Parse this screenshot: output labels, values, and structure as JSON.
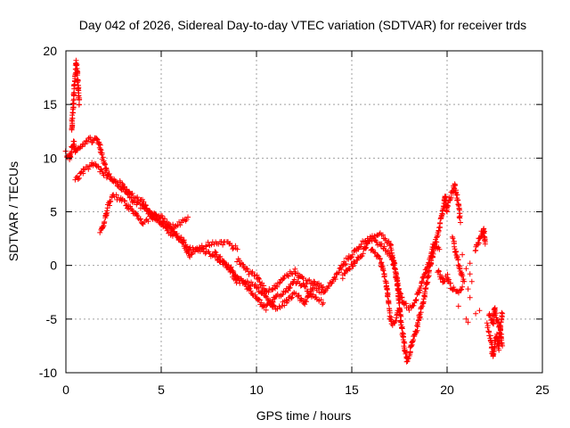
{
  "chart_data": {
    "type": "scatter",
    "title": "Day 042 of 2026, Sidereal Day-to-day VTEC variation (SDTVAR) for receiver trds",
    "xlabel": "GPS time / hours",
    "ylabel": "SDTVAR / TECUs",
    "xlim": [
      0,
      25
    ],
    "ylim": [
      -10,
      20
    ],
    "xticks": [
      0,
      5,
      10,
      15,
      20,
      25
    ],
    "yticks": [
      -10,
      -5,
      0,
      5,
      10,
      15,
      20
    ],
    "grid": true,
    "marker": "+",
    "series": [
      {
        "name": "SDTVAR",
        "color": "#ff0000",
        "tracks": [
          [
            [
              0.0,
              10.5
            ],
            [
              0.2,
              10.0
            ],
            [
              0.3,
              11.0
            ],
            [
              0.4,
              11.5
            ],
            [
              0.5,
              10.5
            ],
            [
              0.8,
              11.2
            ],
            [
              1.0,
              11.5
            ],
            [
              1.2,
              11.8
            ],
            [
              1.4,
              11.5
            ],
            [
              1.6,
              12.0
            ],
            [
              1.8,
              11.0
            ],
            [
              2.0,
              9.5
            ],
            [
              2.2,
              8.5
            ],
            [
              2.5,
              8.0
            ],
            [
              3.0,
              7.5
            ],
            [
              3.5,
              6.0
            ],
            [
              4.0,
              5.5
            ],
            [
              4.5,
              5.0
            ],
            [
              5.0,
              4.0
            ],
            [
              5.5,
              3.0
            ],
            [
              6.0,
              2.5
            ],
            [
              6.5,
              1.5
            ],
            [
              7.0,
              1.5
            ],
            [
              7.5,
              1.2
            ],
            [
              8.0,
              0.5
            ],
            [
              8.5,
              0.0
            ],
            [
              9.0,
              -1.0
            ],
            [
              9.5,
              -2.0
            ],
            [
              10.0,
              -3.0
            ],
            [
              10.5,
              -4.0
            ],
            [
              11.0,
              -3.0
            ],
            [
              11.5,
              -2.5
            ],
            [
              12.0,
              -1.5
            ],
            [
              12.5,
              -2.0
            ],
            [
              13.0,
              -3.0
            ],
            [
              13.5,
              -3.5
            ]
          ],
          [
            [
              0.3,
              12.5
            ],
            [
              0.4,
              15.5
            ],
            [
              0.5,
              18.0
            ],
            [
              0.55,
              19.0
            ],
            [
              0.6,
              18.0
            ],
            [
              0.7,
              15.0
            ]
          ],
          [
            [
              0.5,
              8.0
            ],
            [
              0.8,
              8.5
            ],
            [
              1.0,
              9.0
            ],
            [
              1.5,
              9.5
            ],
            [
              2.0,
              8.5
            ],
            [
              2.5,
              8.0
            ],
            [
              3.0,
              7.0
            ],
            [
              3.5,
              6.5
            ],
            [
              4.0,
              6.0
            ],
            [
              4.5,
              4.5
            ],
            [
              5.0,
              4.0
            ],
            [
              5.5,
              3.5
            ],
            [
              6.0,
              2.5
            ],
            [
              6.5,
              1.0
            ],
            [
              7.0,
              1.5
            ],
            [
              7.5,
              2.0
            ],
            [
              8.0,
              2.0
            ],
            [
              8.5,
              2.0
            ],
            [
              9.0,
              1.5
            ]
          ],
          [
            [
              1.8,
              3.0
            ],
            [
              2.0,
              4.0
            ],
            [
              2.2,
              5.5
            ],
            [
              2.5,
              6.5
            ],
            [
              3.0,
              6.0
            ],
            [
              3.5,
              5.0
            ],
            [
              4.0,
              4.0
            ],
            [
              4.5,
              4.5
            ],
            [
              5.0,
              4.5
            ],
            [
              5.5,
              3.5
            ],
            [
              6.0,
              4.0
            ],
            [
              6.4,
              4.5
            ]
          ],
          [
            [
              7.8,
              1.2
            ],
            [
              8.2,
              0.5
            ],
            [
              8.6,
              -0.5
            ],
            [
              9.0,
              -1.5
            ],
            [
              9.5,
              -1.5
            ],
            [
              10.0,
              -2.0
            ],
            [
              10.5,
              -3.0
            ],
            [
              11.0,
              -4.0
            ],
            [
              11.5,
              -3.5
            ],
            [
              12.0,
              -2.5
            ],
            [
              12.5,
              -3.5
            ],
            [
              13.0,
              -2.0
            ],
            [
              13.5,
              -2.5
            ]
          ],
          [
            [
              9.0,
              0.5
            ],
            [
              9.5,
              -0.5
            ],
            [
              10.0,
              -1.0
            ],
            [
              10.5,
              -2.5
            ],
            [
              11.0,
              -2.0
            ],
            [
              11.5,
              -1.0
            ],
            [
              12.0,
              -0.5
            ],
            [
              12.5,
              -1.5
            ],
            [
              13.0,
              -1.5
            ],
            [
              13.5,
              -2.0
            ]
          ],
          [
            [
              13.5,
              -2.5
            ],
            [
              14.0,
              -1.5
            ],
            [
              14.5,
              0.0
            ],
            [
              15.0,
              1.0
            ],
            [
              15.5,
              2.0
            ],
            [
              16.0,
              2.5
            ],
            [
              16.5,
              2.8
            ],
            [
              17.0,
              2.0
            ],
            [
              17.2,
              0.5
            ],
            [
              17.4,
              -2.0
            ],
            [
              17.6,
              -5.5
            ],
            [
              17.8,
              -8.0
            ],
            [
              17.9,
              -8.8
            ],
            [
              18.0,
              -8.5
            ],
            [
              18.2,
              -7.0
            ],
            [
              18.4,
              -6.0
            ],
            [
              18.6,
              -4.5
            ],
            [
              18.8,
              -3.0
            ],
            [
              19.0,
              -1.0
            ],
            [
              19.3,
              1.5
            ],
            [
              19.6,
              3.5
            ],
            [
              19.8,
              5.5
            ],
            [
              19.9,
              6.5
            ],
            [
              20.0,
              5.0
            ]
          ],
          [
            [
              14.5,
              -1.0
            ],
            [
              15.0,
              0.0
            ],
            [
              15.5,
              1.0
            ],
            [
              16.0,
              2.5
            ],
            [
              16.5,
              2.0
            ],
            [
              17.0,
              1.0
            ],
            [
              17.3,
              -0.5
            ],
            [
              17.5,
              -2.5
            ],
            [
              17.7,
              -3.5
            ],
            [
              18.0,
              -4.0
            ],
            [
              18.3,
              -3.5
            ],
            [
              18.6,
              -2.0
            ],
            [
              19.0,
              0.0
            ],
            [
              19.3,
              2.0
            ],
            [
              19.6,
              1.5
            ]
          ],
          [
            [
              16.0,
              1.5
            ],
            [
              16.5,
              0.5
            ],
            [
              16.8,
              -1.5
            ],
            [
              17.0,
              -4.5
            ],
            [
              17.1,
              -5.5
            ],
            [
              17.3,
              -5.0
            ],
            [
              17.5,
              -4.0
            ]
          ],
          [
            [
              19.5,
              -0.5
            ],
            [
              19.8,
              -1.5
            ],
            [
              20.0,
              -1.0
            ],
            [
              20.2,
              -2.0
            ],
            [
              20.5,
              -2.5
            ],
            [
              20.8,
              -2.0
            ]
          ],
          [
            [
              20.0,
              5.5
            ],
            [
              20.2,
              6.5
            ],
            [
              20.4,
              7.5
            ],
            [
              20.5,
              6.5
            ],
            [
              20.6,
              5.5
            ],
            [
              20.7,
              4.0
            ]
          ],
          [
            [
              20.3,
              2.5
            ],
            [
              20.5,
              1.0
            ],
            [
              20.7,
              -0.5
            ],
            [
              20.9,
              -1.5
            ]
          ],
          [
            [
              21.5,
              1.5
            ],
            [
              21.7,
              2.5
            ],
            [
              21.9,
              3.5
            ],
            [
              22.0,
              2.0
            ]
          ],
          [
            [
              22.1,
              -5.5
            ],
            [
              22.3,
              -7.0
            ],
            [
              22.4,
              -8.5
            ],
            [
              22.5,
              -7.5
            ],
            [
              22.6,
              -6.5
            ],
            [
              22.7,
              -7.8
            ],
            [
              22.8,
              -5.5
            ],
            [
              22.9,
              -4.5
            ]
          ],
          [
            [
              22.2,
              -4.5
            ],
            [
              22.4,
              -5.5
            ],
            [
              22.5,
              -4.0
            ],
            [
              22.6,
              -5.0
            ],
            [
              22.8,
              -6.0
            ],
            [
              22.9,
              -7.5
            ]
          ]
        ],
        "scatter": [
          [
            21.0,
            -5.0
          ],
          [
            21.1,
            -5.3
          ],
          [
            21.1,
            -2.2
          ],
          [
            21.2,
            -3.0
          ],
          [
            21.5,
            -4.5
          ],
          [
            21.7,
            -4.2
          ],
          [
            21.2,
            -0.8
          ],
          [
            21.3,
            -1.5
          ],
          [
            21.2,
            0.2
          ],
          [
            20.8,
            1.0
          ],
          [
            21.5,
            1.4
          ],
          [
            21.8,
            3.2
          ],
          [
            22.0,
            2.2
          ],
          [
            20.6,
            -3.8
          ],
          [
            21.0,
            -0.3
          ]
        ]
      }
    ]
  }
}
